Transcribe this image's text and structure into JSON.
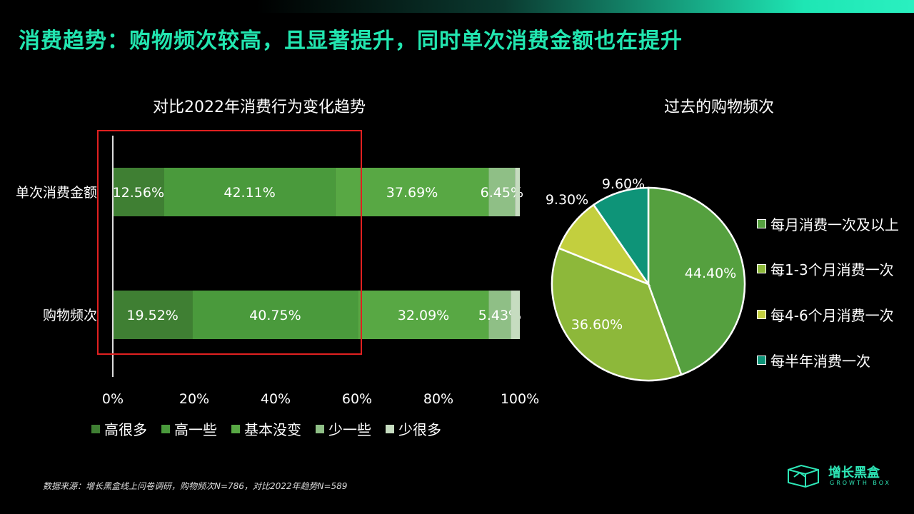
{
  "page": {
    "title": "消费趋势：购物频次较高，且显著提升，同时单次消费金额也在提升",
    "footnote": "数据来源：增长黑盒线上问卷调研，购物频次N=786，对比2022年趋势N=589",
    "logo": {
      "name": "增长黑盒",
      "sub": "GROWTH BOX",
      "icon": "growth-box-logo-icon"
    }
  },
  "chart_data": [
    {
      "type": "bar",
      "orientation": "horizontal",
      "stacked": true,
      "title": "对比2022年消费行为变化趋势",
      "categories": [
        "单次消费金额",
        "购物频次"
      ],
      "xlim": [
        0,
        100
      ],
      "x_ticks": [
        "0%",
        "20%",
        "40%",
        "60%",
        "80%",
        "100%"
      ],
      "legend_position": "bottom",
      "series": [
        {
          "name": "高很多",
          "color": "#3f7f33",
          "values": [
            12.56,
            19.52
          ],
          "labels": [
            "12.56%",
            "19.52%"
          ]
        },
        {
          "name": "高一些",
          "color": "#4a9a3c",
          "values": [
            42.11,
            40.75
          ],
          "labels": [
            "42.11%",
            "40.75%"
          ]
        },
        {
          "name": "基本没变",
          "color": "#58a844",
          "values": [
            37.69,
            32.09
          ],
          "labels": [
            "37.69%",
            "32.09%"
          ]
        },
        {
          "name": "少一些",
          "color": "#8fbf86",
          "values": [
            6.45,
            5.43
          ],
          "labels": [
            "6.45%",
            "5.43%"
          ]
        },
        {
          "name": "少很多",
          "color": "#c6dcc0",
          "values": [
            1.19,
            2.21
          ],
          "labels": [
            "",
            ""
          ]
        }
      ],
      "highlight_box_color": "#e02020"
    },
    {
      "type": "pie",
      "title": "过去的购物频次",
      "legend_position": "right",
      "slices": [
        {
          "name": "每月消费一次及以上",
          "value": 44.4,
          "label": "44.40%",
          "color": "#55a03f"
        },
        {
          "name": "每1-3个月消费一次",
          "value": 36.6,
          "label": "36.60%",
          "color": "#8db83a"
        },
        {
          "name": "每4-6个月消费一次",
          "value": 9.3,
          "label": "9.30%",
          "color": "#c3cf3e"
        },
        {
          "name": "每半年消费一次",
          "value": 9.6,
          "label": "9.60%",
          "color": "#0e9478"
        }
      ]
    }
  ]
}
